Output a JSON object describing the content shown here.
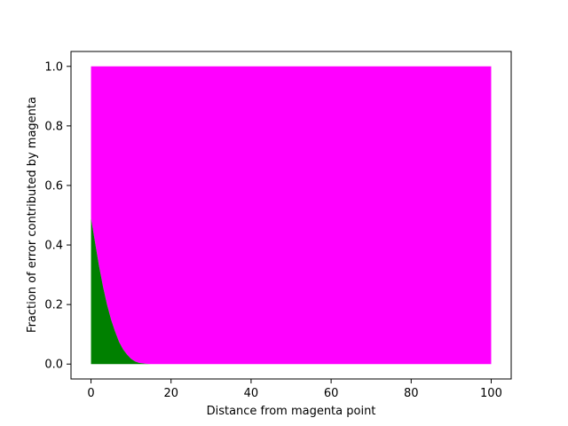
{
  "chart_data": {
    "type": "area",
    "title": "",
    "xlabel": "Distance from magenta point",
    "ylabel": "Fraction of error contributed by magenta",
    "xlim": [
      -5,
      105
    ],
    "ylim": [
      -0.05,
      1.05
    ],
    "xticks": [
      0,
      20,
      40,
      60,
      80,
      100
    ],
    "yticks": [
      0.0,
      0.2,
      0.4,
      0.6,
      0.8,
      1.0
    ],
    "xtick_labels": [
      "0",
      "20",
      "40",
      "60",
      "80",
      "100"
    ],
    "ytick_labels": [
      "0.0",
      "0.2",
      "0.4",
      "0.6",
      "0.8",
      "1.0"
    ],
    "grid": false,
    "x": [
      0,
      1,
      2,
      3,
      4,
      5,
      6,
      7,
      8,
      9,
      10,
      11,
      12,
      13,
      14,
      15,
      20,
      40,
      60,
      80,
      100
    ],
    "series": [
      {
        "color": "#008000",
        "values": [
          0.49,
          0.41,
          0.33,
          0.26,
          0.2,
          0.15,
          0.11,
          0.075,
          0.05,
          0.032,
          0.018,
          0.009,
          0.004,
          0.002,
          0.0005,
          0.0,
          0.0,
          0.0,
          0.0,
          0.0,
          0.0
        ]
      },
      {
        "color": "#ff00ff",
        "values": [
          1,
          1,
          1,
          1,
          1,
          1,
          1,
          1,
          1,
          1,
          1,
          1,
          1,
          1,
          1,
          1,
          1,
          1,
          1,
          1,
          1
        ]
      }
    ]
  }
}
